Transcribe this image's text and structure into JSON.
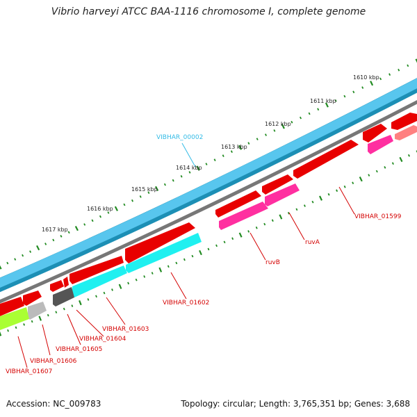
{
  "title": "Vibrio harveyi ATCC BAA-1116 chromosome I, complete genome",
  "footer": {
    "accession": "Accession: NC_009783",
    "summary": "Topology: circular; Length: 3,765,351 bp; Genes: 3,688"
  },
  "ticks": [
    {
      "label": "1610 kbp",
      "bp": 1610
    },
    {
      "label": "1611 kbp",
      "bp": 1611
    },
    {
      "label": "1612 kbp",
      "bp": 1612
    },
    {
      "label": "1613 kbp",
      "bp": 1613
    },
    {
      "label": "1614 kbp",
      "bp": 1614
    },
    {
      "label": "1615 kbp",
      "bp": 1615
    },
    {
      "label": "1616 kbp",
      "bp": 1616
    },
    {
      "label": "1617 kbp",
      "bp": 1617
    }
  ],
  "gene_labels": [
    {
      "name": "VIBHAR_00002",
      "color": "#33bbe6"
    },
    {
      "name": "VIBHAR_01599",
      "color": "#d40000"
    },
    {
      "name": "ruvA",
      "color": "#d40000"
    },
    {
      "name": "ruvB",
      "color": "#d40000"
    },
    {
      "name": "VIBHAR_01602",
      "color": "#d40000"
    },
    {
      "name": "VIBHAR_01603",
      "color": "#d40000"
    },
    {
      "name": "VIBHAR_01604",
      "color": "#d40000"
    },
    {
      "name": "VIBHAR_01605",
      "color": "#d40000"
    },
    {
      "name": "VIBHAR_01606",
      "color": "#d40000"
    },
    {
      "name": "VIBHAR_01607",
      "color": "#d40000"
    }
  ],
  "colors": {
    "gene": "#ff1a1a",
    "rrna": "#ff2fa0",
    "trna": "#1ff0f0",
    "pseudo": "#ff8080",
    "other": "#aaff33",
    "backbone": "#3bbce6",
    "tick": "#228b22"
  }
}
